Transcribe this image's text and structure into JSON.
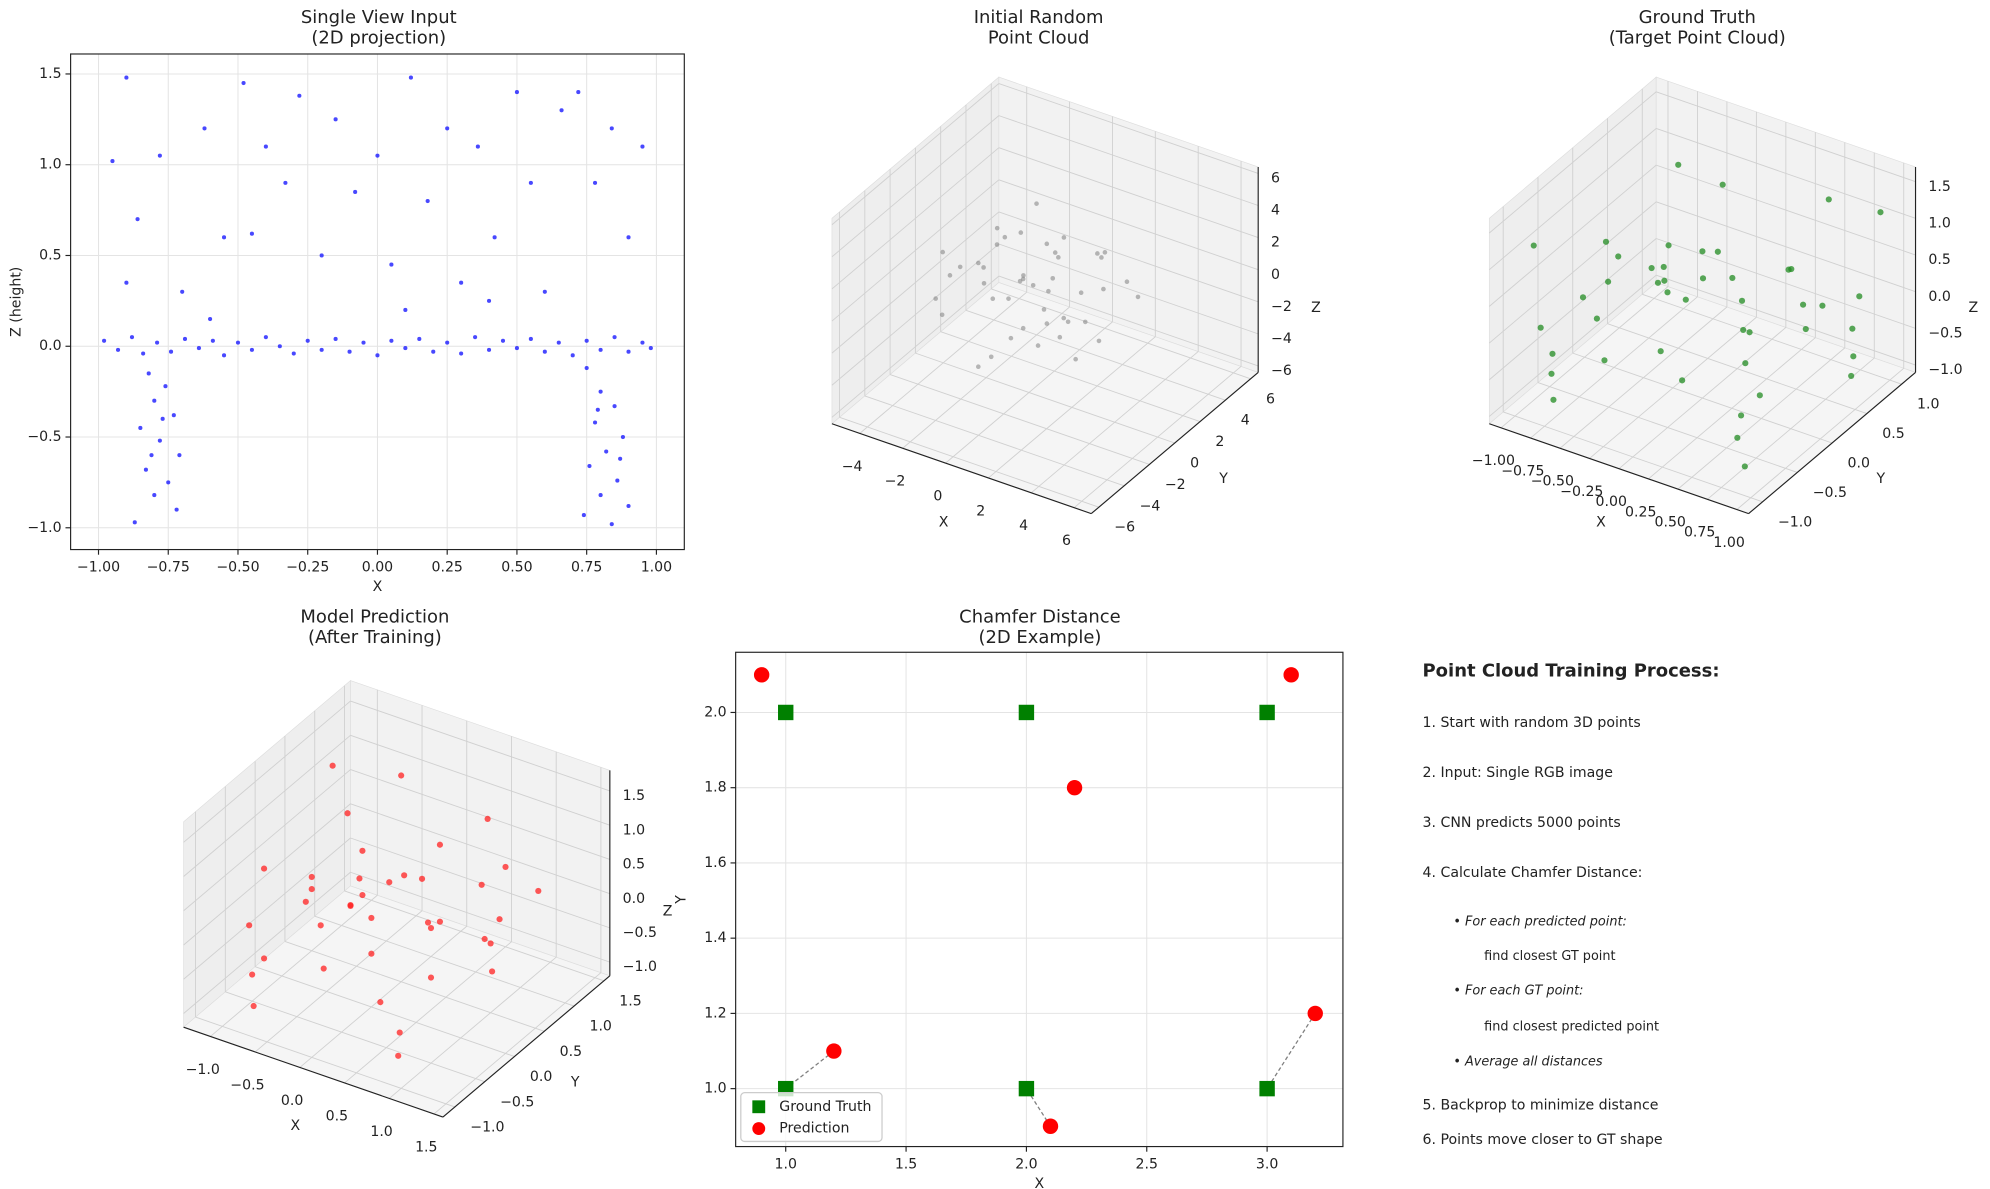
{
  "chart_data": [
    {
      "type": "scatter",
      "title": [
        "Single View Input",
        "(2D projection)"
      ],
      "xlabel": "X",
      "ylabel": "Z (height)",
      "color": "#1a1aff",
      "grid": true,
      "xlim": [
        -1.1,
        1.1
      ],
      "ylim": [
        -1.12,
        1.61
      ],
      "xticks": [
        {
          "value": -1,
          "label": "−1.00"
        },
        {
          "value": -0.75,
          "label": "−0.75"
        },
        {
          "value": -0.5,
          "label": "−0.50"
        },
        {
          "value": -0.25,
          "label": "−0.25"
        },
        {
          "value": 0,
          "label": "0.00"
        },
        0.25,
        {
          "value": 0.5,
          "label": "0.50"
        },
        0.75,
        {
          "value": 1,
          "label": "1.00"
        }
      ],
      "yticks": [
        {
          "value": -1,
          "label": "−1.0"
        },
        {
          "value": -0.5,
          "label": "−0.5"
        },
        {
          "value": 0,
          "label": "0.0"
        },
        0.5,
        {
          "value": 1,
          "label": "1.0"
        },
        1.5
      ],
      "x": [
        -0.98,
        -0.93,
        -0.88,
        -0.84,
        -0.79,
        -0.74,
        -0.69,
        -0.64,
        -0.59,
        -0.55,
        -0.5,
        -0.45,
        -0.4,
        -0.35,
        -0.3,
        -0.25,
        -0.2,
        -0.15,
        -0.1,
        -0.05,
        0,
        0.05,
        0.1,
        0.15,
        0.2,
        0.25,
        0.3,
        0.35,
        0.4,
        0.45,
        0.5,
        0.55,
        0.6,
        0.65,
        0.7,
        0.75,
        0.8,
        0.85,
        0.9,
        0.95,
        0.98,
        -0.82,
        -0.76,
        -0.8,
        -0.73,
        -0.85,
        -0.78,
        -0.71,
        -0.83,
        -0.75,
        -0.8,
        -0.72,
        -0.87,
        -0.77,
        -0.81,
        0.75,
        0.8,
        0.85,
        0.78,
        0.88,
        0.82,
        0.76,
        0.86,
        0.8,
        0.9,
        0.74,
        0.84,
        0.79,
        0.87,
        -0.9,
        -0.95,
        -0.86,
        -0.78,
        -0.7,
        -0.62,
        -0.55,
        -0.48,
        -0.45,
        -0.4,
        -0.33,
        -0.28,
        -0.2,
        -0.15,
        -0.08,
        0,
        0.05,
        0.12,
        0.18,
        0.25,
        0.3,
        0.36,
        0.42,
        0.5,
        0.55,
        0.6,
        0.66,
        0.72,
        0.78,
        0.84,
        0.9,
        0.95,
        -0.9,
        0.1,
        -0.6,
        0.4
      ],
      "y": [
        0.03,
        -0.02,
        0.05,
        -0.04,
        0.02,
        -0.03,
        0.04,
        -0.01,
        0.03,
        -0.05,
        0.02,
        -0.02,
        0.05,
        0,
        -0.04,
        0.03,
        -0.02,
        0.04,
        -0.03,
        0.02,
        -0.05,
        0.03,
        -0.01,
        0.04,
        -0.03,
        0.02,
        -0.04,
        0.05,
        -0.02,
        0.03,
        -0.01,
        0.04,
        -0.03,
        0.02,
        -0.05,
        0.03,
        -0.02,
        0.05,
        -0.03,
        0.02,
        -0.01,
        -0.15,
        -0.22,
        -0.3,
        -0.38,
        -0.45,
        -0.52,
        -0.6,
        -0.68,
        -0.75,
        -0.82,
        -0.9,
        -0.97,
        -0.4,
        -0.6,
        -0.12,
        -0.25,
        -0.33,
        -0.42,
        -0.5,
        -0.58,
        -0.66,
        -0.74,
        -0.82,
        -0.88,
        -0.93,
        -0.98,
        -0.35,
        -0.62,
        1.48,
        1.02,
        0.7,
        1.05,
        0.3,
        1.2,
        0.6,
        1.45,
        0.62,
        1.1,
        0.9,
        1.38,
        0.5,
        1.25,
        0.85,
        1.05,
        0.45,
        1.48,
        0.8,
        1.2,
        0.35,
        1.1,
        0.6,
        1.4,
        0.9,
        0.3,
        1.3,
        1.4,
        0.9,
        1.2,
        0.6,
        1.1,
        0.35,
        0.2,
        0.15,
        0.25
      ]
    },
    {
      "type": "scatter3d",
      "title": [
        "Initial Random",
        "Point Cloud"
      ],
      "xlabel": "X",
      "ylabel": "Y",
      "zlabel": "Z",
      "color": "#808080",
      "xlim": [
        -5.3,
        6.8
      ],
      "ylim": [
        -6.6,
        6.6
      ],
      "zlim": [
        -6.4,
        6.4
      ],
      "xticks": [
        {
          "value": -4,
          "label": "−4"
        },
        {
          "value": -2,
          "label": "−2"
        },
        0,
        2,
        4,
        6
      ],
      "yticks": [
        {
          "value": -6,
          "label": "−6"
        },
        {
          "value": -4,
          "label": "−4"
        },
        {
          "value": -2,
          "label": "−2"
        },
        0,
        2,
        4,
        6
      ],
      "zticks": [
        {
          "value": -6,
          "label": "−6"
        },
        {
          "value": -4,
          "label": "−4"
        },
        {
          "value": -2,
          "label": "−2"
        },
        0,
        2,
        4,
        6
      ],
      "x": [
        1.2,
        -1.5,
        0.3,
        2.5,
        -0.8,
        1.8,
        -2.6,
        0.6,
        -0.2,
        3.0,
        -1.1,
        0.9,
        -3.2,
        1.5,
        -0.5,
        2.2,
        -1.9,
        0.1,
        -2.4,
        3.5,
        0.4,
        -0.9,
        1.0,
        -1.6,
        2.8,
        -3.8,
        0.7,
        -0.3,
        1.9,
        -2.0,
        4.2,
        -1.3,
        0.2,
        2.0,
        -2.9,
        1.3,
        -0.7,
        3.3,
        -4.0,
        0.5,
        -1.8,
        2.6,
        -0.1,
        1.6,
        -2.2
      ],
      "y": [
        -0.5,
        2.1,
        0.9,
        -1.8,
        -2.2,
        1.4,
        0.4,
        -0.3,
        3.1,
        0.8,
        -1.0,
        2.6,
        -1.4,
        -3.0,
        0.2,
        2.0,
        1.6,
        -1.6,
        -2.8,
        -0.4,
        1.2,
        3.6,
        -2.4,
        0.8,
        3.0,
        1.0,
        0.0,
        -3.5,
        -0.9,
        -0.2,
        1.5,
        2.8,
        -0.8,
        0.3,
        2.4,
        3.8,
        -1.8,
        -2.5,
        -0.6,
        1.9,
        -3.2,
        1.0,
        0.5,
        -1.3,
        1.2
      ],
      "z": [
        0.8,
        -1.2,
        2.4,
        -0.6,
        1.5,
        -2.1,
        0.2,
        -3.0,
        1.1,
        0.9,
        -0.4,
        -1.5,
        1.8,
        0.3,
        3.2,
        1.7,
        -2.5,
        -1.9,
        -0.8,
        -1.3,
        0.1,
        -0.5,
        2.6,
        2.0,
        -0.2,
        -1.0,
        -0.9,
        -2.6,
        3.5,
        0.6,
        0.5,
        2.9,
        1.3,
        -3.6,
        0.9,
        0.4,
        -3.3,
        1.2,
        -2.0,
        -2.8,
        2.2,
        2.8,
        -0.1,
        -0.5,
        1.0
      ]
    },
    {
      "type": "scatter3d",
      "title": [
        "Ground Truth",
        "(Target Point Cloud)"
      ],
      "xlabel": "X",
      "ylabel": "Y",
      "zlabel": "Z",
      "color": "#228b22",
      "xlim": [
        -1.1,
        1.1
      ],
      "ylim": [
        -1.2,
        1.2
      ],
      "zlim": [
        -1.1,
        1.7
      ],
      "xticks": [
        {
          "value": -1,
          "label": "−1.00"
        },
        {
          "value": -0.75,
          "label": "−0.75"
        },
        {
          "value": -0.5,
          "label": "−0.50"
        },
        {
          "value": -0.25,
          "label": "−0.25"
        },
        {
          "value": 0,
          "label": "0.00"
        },
        0.25,
        {
          "value": 0.5,
          "label": "0.50"
        },
        0.75,
        {
          "value": 1,
          "label": "1.00"
        }
      ],
      "yticks": [
        {
          "value": -1,
          "label": "−1.0"
        },
        {
          "value": -0.5,
          "label": "−0.5"
        },
        {
          "value": 0,
          "label": "0.0"
        },
        0.5,
        {
          "value": 1,
          "label": "1.0"
        }
      ],
      "zticks": [
        {
          "value": -1,
          "label": "−1.0"
        },
        {
          "value": -0.5,
          "label": "−0.5"
        },
        {
          "value": 0,
          "label": "0.0"
        },
        0.5,
        {
          "value": 1,
          "label": "1.0"
        },
        1.5
      ],
      "x": [
        -0.9,
        -0.6,
        -0.3,
        0.0,
        0.3,
        0.6,
        0.9,
        -0.8,
        -0.5,
        -0.2,
        0.1,
        0.4,
        0.7,
        -0.7,
        -0.4,
        -0.1,
        0.2,
        0.5,
        0.8,
        -0.95,
        -0.8,
        -0.82,
        -0.78,
        0.8,
        0.78,
        0.82,
        -0.8,
        -0.78,
        0.8,
        0.82,
        0.79,
        -0.9,
        -0.5,
        0.0,
        0.3,
        0.6,
        -0.2,
        0.9,
        -0.7,
        0.4,
        -0.3,
        0.7,
        -0.6,
        0.1,
        0.95
      ],
      "y": [
        -0.8,
        -0.5,
        -0.9,
        -0.6,
        -0.8,
        -0.4,
        -0.7,
        0.0,
        0.3,
        0.1,
        0.4,
        0.0,
        0.3,
        0.7,
        0.9,
        0.6,
        0.9,
        0.6,
        0.9,
        0.4,
        -0.8,
        -0.78,
        -0.82,
        -0.8,
        -0.82,
        -0.78,
        0.8,
        0.82,
        0.8,
        0.78,
        0.8,
        -0.9,
        0.5,
        0.0,
        -0.5,
        0.8,
        -0.3,
        0.2,
        -0.2,
        0.6,
        0.8,
        -0.6,
        -0.7,
        -0.9,
        0.95
      ],
      "z": [
        0.0,
        0.05,
        -0.03,
        0.02,
        -0.05,
        0.03,
        0.0,
        0.04,
        -0.02,
        0.05,
        -0.04,
        0.02,
        -0.01,
        0.03,
        -0.05,
        0.0,
        0.04,
        -0.03,
        0.01,
        -0.02,
        -0.3,
        -0.6,
        -0.9,
        -0.25,
        -0.55,
        -0.95,
        -0.4,
        -0.75,
        -0.35,
        -0.7,
        -1.0,
        1.2,
        1.4,
        0.9,
        1.1,
        1.3,
        0.6,
        0.5,
        0.8,
        0.4,
        1.0,
        0.7,
        0.5,
        1.45,
        1.2
      ]
    },
    {
      "type": "scatter3d",
      "title": [
        "Model Prediction",
        "(After Training)"
      ],
      "xlabel": "X",
      "ylabel": "Y",
      "zlabel": "Z",
      "color": "#ff2020",
      "xlim": [
        -1.3,
        1.6
      ],
      "ylim": [
        -1.2,
        1.6
      ],
      "zlim": [
        -1.2,
        1.8
      ],
      "xticks": [
        {
          "value": -1,
          "label": "−1.0"
        },
        {
          "value": -0.5,
          "label": "−0.5"
        },
        {
          "value": 0,
          "label": "0.0"
        },
        0.5,
        {
          "value": 1,
          "label": "1.0"
        },
        1.5
      ],
      "yticks": [
        {
          "value": -1,
          "label": "−1.0"
        },
        {
          "value": -0.5,
          "label": "−0.5"
        },
        {
          "value": 0,
          "label": "0.0"
        },
        0.5,
        {
          "value": 1,
          "label": "1.0"
        },
        1.5
      ],
      "zticks": [
        {
          "value": -1,
          "label": "−1.0"
        },
        {
          "value": -0.5,
          "label": "−0.5"
        },
        {
          "value": 0,
          "label": "0.0"
        },
        0.5,
        {
          "value": 1,
          "label": "1.0"
        },
        1.5
      ],
      "x": [
        -0.9,
        -0.6,
        -0.3,
        0.0,
        0.4,
        0.7,
        1.0,
        -0.8,
        -0.4,
        0.0,
        0.3,
        0.6,
        1.0,
        -0.7,
        -0.3,
        0.1,
        0.5,
        0.9,
        -1.0,
        1.2,
        -0.8,
        -0.75,
        0.85,
        0.8,
        -0.8,
        0.8,
        0.85,
        -0.8,
        -0.4,
        0.1,
        0.5,
        0.9,
        -0.2,
        0.7,
        -0.6,
        0.3,
        1.1,
        -0.9,
        0.0
      ],
      "y": [
        -0.7,
        -0.9,
        -0.4,
        -0.8,
        -0.6,
        -0.9,
        -0.5,
        0.1,
        0.4,
        0.0,
        0.5,
        0.1,
        0.4,
        0.9,
        1.0,
        0.7,
        1.1,
        0.8,
        0.5,
        1.0,
        -0.8,
        -0.85,
        -0.8,
        -0.75,
        0.85,
        0.8,
        0.75,
        -0.6,
        0.2,
        -0.3,
        0.4,
        -0.2,
        0.8,
        0.9,
        -0.1,
        -0.8,
        0.6,
        0.7,
        0.3
      ],
      "z": [
        0.1,
        -0.1,
        0.15,
        -0.05,
        0.2,
        -0.15,
        0.05,
        -0.1,
        0.2,
        0.1,
        -0.2,
        0.15,
        -0.05,
        0.1,
        -0.15,
        0.2,
        0.0,
        -0.1,
        -0.3,
        0.3,
        -0.5,
        -0.9,
        -0.6,
        -1.0,
        -0.7,
        -0.5,
        -0.85,
        0.9,
        1.3,
        0.7,
        1.1,
        0.6,
        1.5,
        1.2,
        0.5,
        1.0,
        0.9,
        1.4,
        0.4
      ]
    },
    {
      "type": "scatter",
      "title": [
        "Chamfer Distance",
        "(2D Example)"
      ],
      "xlabel": "X",
      "ylabel": "Y",
      "grid": true,
      "legend": "lower left",
      "xlim": [
        0.792,
        3.315
      ],
      "ylim": [
        0.846,
        2.16
      ],
      "xticks": [
        {
          "value": 1,
          "label": "1.0"
        },
        1.5,
        {
          "value": 2,
          "label": "2.0"
        },
        2.5,
        {
          "value": 3,
          "label": "3.0"
        }
      ],
      "yticks": [
        {
          "value": 1,
          "label": "1.0"
        },
        1.2,
        1.4,
        1.6,
        1.8,
        {
          "value": 2,
          "label": "2.0"
        }
      ],
      "series": [
        {
          "name": "Ground Truth",
          "color": "#008000",
          "marker": "square",
          "x": [
            1,
            2,
            3,
            1,
            2,
            3
          ],
          "y": [
            2,
            2,
            2,
            1,
            1,
            1
          ]
        },
        {
          "name": "Prediction",
          "color": "#ff0000",
          "marker": "circle",
          "x": [
            0.9,
            3.1,
            2.2,
            1.2,
            2.1,
            3.2
          ],
          "y": [
            2.1,
            2.1,
            1.8,
            1.1,
            0.9,
            1.2
          ]
        }
      ],
      "connections": [
        {
          "x": [
            1.2,
            1
          ],
          "y": [
            1.1,
            1
          ]
        },
        {
          "x": [
            2.1,
            2
          ],
          "y": [
            0.9,
            1
          ]
        },
        {
          "x": [
            3.2,
            3
          ],
          "y": [
            1.2,
            1
          ]
        }
      ]
    }
  ],
  "notes": {
    "title": "Point Cloud Training Process:",
    "lines": [
      "1. Start with random 3D points",
      "2. Input: Single RGB image",
      "3. CNN predicts 5000 points",
      "4. Calculate Chamfer Distance:",
      "• For each predicted point:",
      "find closest GT point",
      "• For each GT point:",
      "find closest predicted point",
      "• Average all distances",
      "5. Backprop to minimize distance",
      "6. Points move closer to GT shape"
    ]
  }
}
